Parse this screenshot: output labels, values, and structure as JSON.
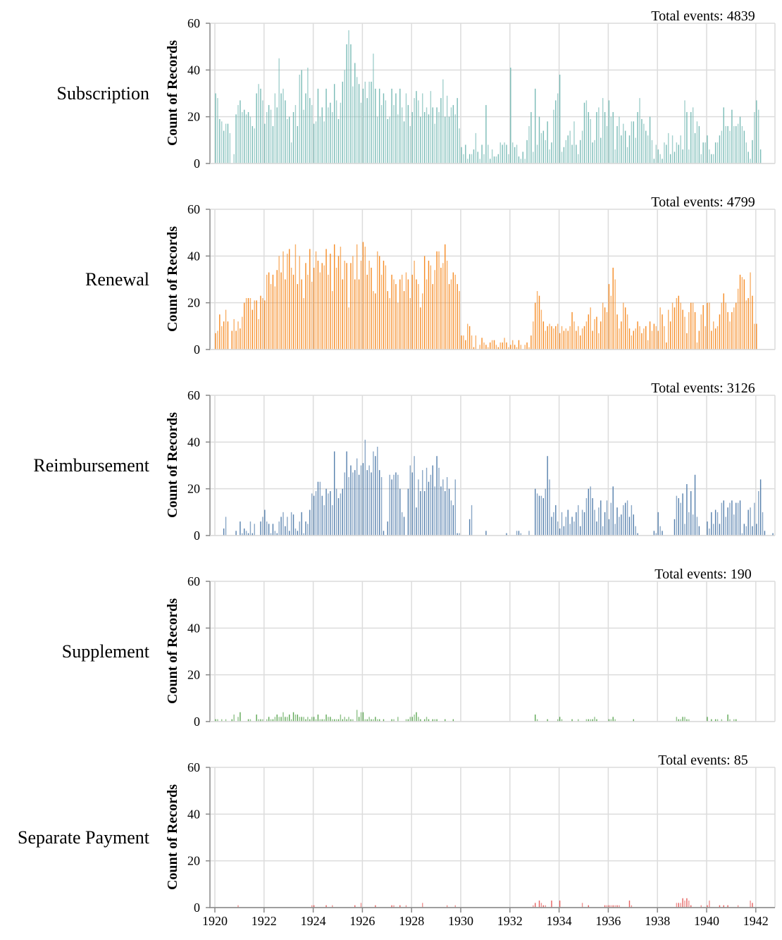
{
  "chart_data": {
    "type": "bar",
    "layout": "small-multiples-vertical",
    "x_start": "1920-01",
    "x_step": "month",
    "xlim": [
      1919.8,
      1942.77
    ],
    "x_ticks": [
      "1920",
      "1922",
      "1924",
      "1926",
      "1928",
      "1930",
      "1932",
      "1934",
      "1936",
      "1938",
      "1940",
      "1942"
    ],
    "ylabel": "Count of Records",
    "ylim": [
      0,
      60
    ],
    "y_ticks": [
      "0",
      "20",
      "40",
      "60"
    ],
    "grid": true,
    "series": [
      {
        "name": "Subscription",
        "total_label": "Total events: 4839",
        "color": "#72b7b2",
        "values": [
          30,
          28,
          19,
          18,
          14,
          17,
          17,
          13,
          0,
          4,
          21,
          25,
          27,
          22,
          23,
          21,
          22,
          20,
          16,
          15,
          30,
          34,
          32,
          27,
          17,
          22,
          25,
          23,
          16,
          30,
          24,
          45,
          30,
          32,
          27,
          19,
          20,
          9,
          22,
          25,
          16,
          38,
          40,
          23,
          30,
          41,
          28,
          25,
          17,
          18,
          32,
          20,
          24,
          18,
          32,
          24,
          26,
          22,
          34,
          27,
          19,
          26,
          35,
          40,
          51,
          57,
          51,
          33,
          43,
          37,
          34,
          26,
          32,
          35,
          28,
          35,
          35,
          47,
          32,
          20,
          32,
          25,
          30,
          27,
          19,
          20,
          32,
          25,
          30,
          21,
          32,
          24,
          18,
          30,
          25,
          16,
          22,
          28,
          31,
          27,
          20,
          30,
          22,
          24,
          21,
          31,
          24,
          17,
          24,
          22,
          28,
          36,
          20,
          29,
          20,
          24,
          25,
          21,
          28,
          15,
          7,
          4,
          8,
          2,
          4,
          4,
          6,
          13,
          5,
          2,
          8,
          4,
          25,
          8,
          2,
          6,
          3,
          3,
          4,
          9,
          8,
          9,
          8,
          4,
          41,
          9,
          7,
          8,
          3,
          2,
          5,
          2,
          10,
          16,
          22,
          5,
          32,
          8,
          20,
          13,
          14,
          10,
          18,
          6,
          9,
          23,
          27,
          30,
          38,
          5,
          7,
          10,
          12,
          14,
          8,
          18,
          8,
          4,
          10,
          14,
          26,
          27,
          22,
          19,
          9,
          10,
          22,
          24,
          11,
          28,
          22,
          16,
          27,
          20,
          22,
          6,
          16,
          20,
          12,
          17,
          14,
          7,
          12,
          18,
          18,
          11,
          22,
          28,
          19,
          17,
          14,
          12,
          20,
          10,
          2,
          8,
          6,
          4,
          2,
          9,
          8,
          13,
          4,
          12,
          5,
          9,
          8,
          12,
          6,
          27,
          22,
          6,
          22,
          24,
          13,
          18,
          16,
          4,
          9,
          9,
          12,
          6,
          4,
          4,
          9,
          9,
          12,
          14,
          24,
          16,
          16,
          14,
          23,
          16,
          16,
          17,
          20,
          16,
          14,
          9,
          5,
          2,
          10,
          22,
          27,
          23,
          6
        ]
      },
      {
        "name": "Renewal",
        "total_label": "Total events: 4799",
        "color": "#f58518",
        "values": [
          7,
          8,
          15,
          10,
          12,
          17,
          12,
          0,
          8,
          13,
          8,
          12,
          9,
          14,
          20,
          22,
          22,
          22,
          17,
          21,
          21,
          13,
          23,
          22,
          21,
          32,
          33,
          28,
          32,
          27,
          34,
          40,
          33,
          42,
          30,
          41,
          43,
          35,
          32,
          45,
          28,
          40,
          30,
          22,
          37,
          32,
          43,
          29,
          35,
          42,
          38,
          33,
          37,
          36,
          43,
          32,
          41,
          25,
          45,
          35,
          40,
          44,
          30,
          38,
          37,
          18,
          37,
          40,
          30,
          45,
          30,
          38,
          46,
          44,
          32,
          38,
          35,
          25,
          24,
          42,
          40,
          32,
          38,
          36,
          25,
          22,
          32,
          30,
          28,
          20,
          30,
          32,
          25,
          33,
          30,
          22,
          32,
          38,
          30,
          28,
          18,
          24,
          40,
          30,
          38,
          36,
          28,
          34,
          42,
          42,
          35,
          37,
          45,
          38,
          28,
          30,
          33,
          32,
          28,
          25,
          6,
          6,
          4,
          11,
          10,
          6,
          1,
          6,
          0,
          2,
          5,
          3,
          2,
          1,
          3,
          4,
          4,
          2,
          1,
          3,
          3,
          5,
          3,
          1,
          2,
          4,
          2,
          1,
          4,
          2,
          0,
          2,
          3,
          1,
          6,
          12,
          20,
          25,
          23,
          17,
          12,
          8,
          10,
          11,
          10,
          9,
          10,
          11,
          7,
          10,
          8,
          9,
          8,
          10,
          16,
          12,
          8,
          10,
          6,
          9,
          10,
          12,
          15,
          18,
          8,
          13,
          14,
          7,
          12,
          20,
          18,
          16,
          28,
          23,
          35,
          30,
          15,
          9,
          12,
          20,
          18,
          15,
          9,
          6,
          8,
          9,
          12,
          10,
          7,
          9,
          10,
          4,
          12,
          8,
          11,
          10,
          8,
          18,
          15,
          10,
          3,
          17,
          12,
          20,
          18,
          22,
          23,
          20,
          17,
          14,
          7,
          16,
          20,
          20,
          16,
          3,
          8,
          15,
          19,
          10,
          20,
          20,
          8,
          12,
          9,
          10,
          15,
          20,
          24,
          20,
          16,
          12,
          16,
          18,
          20,
          26,
          32,
          31,
          30,
          21,
          22,
          33,
          23,
          11,
          11
        ]
      },
      {
        "name": "Reimbursement",
        "total_label": "Total events: 3126",
        "color": "#4c78a8",
        "values": [
          0,
          0,
          0,
          0,
          3,
          8,
          0,
          0,
          0,
          0,
          2,
          0,
          6,
          1,
          3,
          2,
          1,
          6,
          1,
          5,
          0,
          0,
          6,
          8,
          11,
          6,
          5,
          1,
          5,
          2,
          1,
          6,
          8,
          10,
          4,
          8,
          2,
          10,
          9,
          3,
          2,
          6,
          10,
          1,
          6,
          5,
          11,
          18,
          17,
          19,
          23,
          23,
          17,
          13,
          20,
          18,
          19,
          13,
          36,
          20,
          16,
          18,
          20,
          27,
          36,
          25,
          30,
          27,
          28,
          33,
          26,
          30,
          31,
          41,
          28,
          30,
          27,
          36,
          34,
          38,
          28,
          25,
          2,
          0,
          6,
          26,
          24,
          26,
          27,
          26,
          20,
          10,
          8,
          0,
          20,
          30,
          27,
          34,
          12,
          24,
          19,
          28,
          19,
          29,
          23,
          26,
          30,
          21,
          34,
          29,
          21,
          24,
          19,
          25,
          20,
          15,
          13,
          24,
          1,
          1,
          0,
          0,
          0,
          0,
          7,
          13,
          0,
          0,
          0,
          0,
          0,
          0,
          2,
          0,
          0,
          0,
          0,
          0,
          0,
          0,
          0,
          0,
          1,
          0,
          0,
          0,
          0,
          2,
          2,
          1,
          0,
          0,
          0,
          2,
          0,
          0,
          20,
          18,
          17,
          17,
          16,
          20,
          34,
          24,
          8,
          10,
          13,
          6,
          3,
          10,
          4,
          8,
          11,
          5,
          8,
          6,
          10,
          13,
          4,
          11,
          10,
          16,
          20,
          21,
          16,
          11,
          6,
          12,
          15,
          4,
          10,
          15,
          7,
          14,
          21,
          5,
          12,
          8,
          9,
          13,
          14,
          15,
          8,
          13,
          9,
          4,
          1,
          0,
          0,
          0,
          0,
          0,
          0,
          0,
          2,
          1,
          10,
          4,
          2,
          0,
          0,
          0,
          0,
          0,
          7,
          17,
          16,
          14,
          18,
          5,
          22,
          10,
          19,
          9,
          26,
          8,
          4,
          0,
          0,
          0,
          6,
          3,
          10,
          5,
          11,
          10,
          5,
          14,
          15,
          8,
          12,
          14,
          15,
          9,
          14,
          14,
          15,
          1,
          5,
          4,
          11,
          12,
          4,
          14,
          5,
          19,
          24,
          10,
          2,
          0,
          0,
          0,
          1
        ]
      },
      {
        "name": "Supplement",
        "total_label": "Total events: 190",
        "color": "#54a24b",
        "values": [
          1,
          1,
          0,
          1,
          0,
          1,
          0,
          0,
          1,
          3,
          0,
          2,
          4,
          0,
          0,
          0,
          1,
          1,
          0,
          0,
          3,
          1,
          1,
          1,
          0,
          1,
          2,
          1,
          1,
          2,
          3,
          2,
          2,
          4,
          2,
          2,
          3,
          1,
          4,
          3,
          3,
          2,
          2,
          2,
          1,
          2,
          1,
          2,
          2,
          1,
          3,
          1,
          1,
          1,
          3,
          2,
          2,
          1,
          1,
          1,
          1,
          3,
          1,
          2,
          1,
          2,
          1,
          1,
          0,
          5,
          2,
          4,
          4,
          1,
          1,
          2,
          1,
          1,
          2,
          1,
          1,
          0,
          1,
          0,
          0,
          0,
          1,
          1,
          0,
          2,
          0,
          0,
          0,
          1,
          1,
          2,
          2,
          3,
          4,
          2,
          1,
          0,
          1,
          2,
          1,
          0,
          1,
          1,
          1,
          0,
          0,
          0,
          1,
          0,
          0,
          0,
          1,
          0,
          0,
          0,
          0,
          0,
          0,
          0,
          0,
          0,
          0,
          0,
          0,
          0,
          0,
          0,
          0,
          0,
          0,
          0,
          0,
          0,
          0,
          0,
          0,
          0,
          0,
          0,
          0,
          0,
          0,
          0,
          0,
          0,
          0,
          0,
          0,
          0,
          0,
          0,
          3,
          1,
          0,
          0,
          0,
          0,
          1,
          0,
          0,
          0,
          0,
          1,
          2,
          1,
          0,
          0,
          0,
          0,
          1,
          0,
          0,
          1,
          0,
          0,
          0,
          1,
          1,
          1,
          1,
          2,
          1,
          0,
          0,
          0,
          0,
          0,
          1,
          1,
          2,
          1,
          0,
          0,
          0,
          0,
          0,
          0,
          0,
          0,
          1,
          0,
          0,
          0,
          0,
          0,
          0,
          0,
          0,
          0,
          0,
          0,
          0,
          0,
          0,
          0,
          0,
          0,
          0,
          0,
          0,
          2,
          1,
          1,
          2,
          2,
          1,
          1,
          0,
          0,
          0,
          0,
          0,
          0,
          0,
          0,
          2,
          0,
          1,
          0,
          1,
          1,
          0,
          1,
          0,
          0,
          3,
          1,
          0,
          1,
          1,
          0,
          0,
          0,
          0,
          0,
          0,
          0,
          0,
          0,
          0
        ]
      },
      {
        "name": "Separate Payment",
        "total_label": "Total events: 85",
        "color": "#e45756",
        "values": [
          0,
          0,
          0,
          0,
          0,
          0,
          0,
          0,
          0,
          0,
          0,
          1,
          0,
          0,
          0,
          0,
          0,
          0,
          0,
          0,
          0,
          0,
          0,
          0,
          0,
          0,
          0,
          0,
          0,
          0,
          0,
          0,
          0,
          0,
          0,
          0,
          0,
          0,
          0,
          0,
          0,
          0,
          0,
          0,
          0,
          0,
          0,
          1,
          1,
          0,
          0,
          0,
          0,
          0,
          1,
          0,
          0,
          1,
          0,
          0,
          0,
          0,
          0,
          0,
          0,
          0,
          0,
          0,
          1,
          0,
          0,
          2,
          0,
          0,
          0,
          0,
          0,
          0,
          1,
          0,
          0,
          0,
          0,
          0,
          0,
          0,
          1,
          1,
          0,
          0,
          1,
          0,
          0,
          1,
          0,
          0,
          0,
          0,
          0,
          0,
          0,
          2,
          0,
          0,
          0,
          0,
          0,
          0,
          0,
          0,
          0,
          0,
          0,
          1,
          0,
          0,
          0,
          1,
          0,
          0,
          0,
          0,
          0,
          0,
          0,
          0,
          0,
          0,
          0,
          0,
          0,
          0,
          0,
          0,
          0,
          0,
          0,
          0,
          0,
          0,
          0,
          0,
          0,
          0,
          0,
          0,
          0,
          0,
          0,
          0,
          0,
          0,
          0,
          0,
          0,
          1,
          2,
          0,
          3,
          2,
          1,
          1,
          0,
          0,
          3,
          0,
          0,
          0,
          3,
          0,
          0,
          0,
          0,
          0,
          0,
          0,
          0,
          0,
          0,
          2,
          0,
          0,
          1,
          0,
          0,
          0,
          0,
          0,
          0,
          0,
          1,
          1,
          1,
          1,
          1,
          1,
          1,
          1,
          0,
          0,
          0,
          0,
          3,
          1,
          0,
          0,
          0,
          0,
          0,
          0,
          0,
          0,
          0,
          0,
          0,
          0,
          0,
          0,
          0,
          0,
          0,
          0,
          0,
          0,
          0,
          2,
          2,
          2,
          4,
          3,
          4,
          3,
          1,
          0,
          0,
          0,
          0,
          1,
          0,
          0,
          1,
          3,
          0,
          0,
          0,
          0,
          1,
          0,
          1,
          0,
          1,
          0,
          0,
          0,
          0,
          1,
          0,
          0,
          0,
          0,
          0,
          3,
          2,
          0,
          0
        ]
      }
    ]
  }
}
